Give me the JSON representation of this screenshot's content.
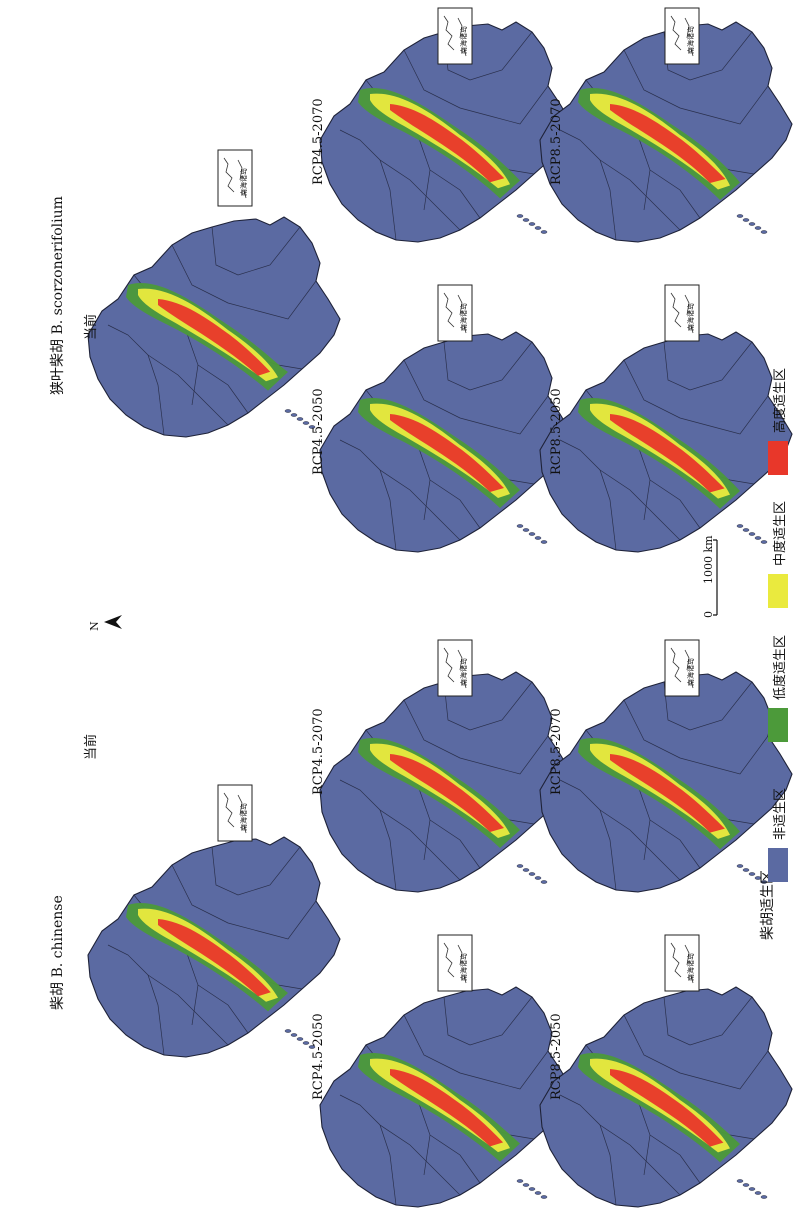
{
  "figure": {
    "species_left": "柴胡 B. chinense",
    "species_right": "狭叶柴胡 B. scorzonerifolium",
    "north_label": "N",
    "scale_zero": "0",
    "scale_label": "1000 km",
    "inset_label": "南海诸岛"
  },
  "panels": [
    {
      "label": "当前",
      "species": "B. chinense",
      "scenario": "current"
    },
    {
      "label": "RCP4.5-2050",
      "species": "B. chinense",
      "scenario": "RCP4.5-2050"
    },
    {
      "label": "RCP4.5-2070",
      "species": "B. chinense",
      "scenario": "RCP4.5-2070"
    },
    {
      "label": "RCP8.5-2050",
      "species": "B. chinense",
      "scenario": "RCP8.5-2050"
    },
    {
      "label": "RCP8.5-2070",
      "species": "B. chinense",
      "scenario": "RCP8.5-2070"
    },
    {
      "label": "当前",
      "species": "B. scorzonerifolium",
      "scenario": "current"
    },
    {
      "label": "RCP4.5-2050",
      "species": "B. scorzonerifolium",
      "scenario": "RCP4.5-2050"
    },
    {
      "label": "RCP4.5-2070",
      "species": "B. scorzonerifolium",
      "scenario": "RCP4.5-2070"
    },
    {
      "label": "RCP8.5-2050",
      "species": "B. scorzonerifolium",
      "scenario": "RCP8.5-2050"
    },
    {
      "label": "RCP8.5-2070",
      "species": "B. scorzonerifolium",
      "scenario": "RCP8.5-2070"
    }
  ],
  "legend": {
    "title": "柴胡适生区",
    "items": [
      {
        "label": "非适生区",
        "color": "#5b6aa2"
      },
      {
        "label": "低度适生区",
        "color": "#4c9a3a"
      },
      {
        "label": "中度适生区",
        "color": "#eaea3e"
      },
      {
        "label": "高度适生区",
        "color": "#e8372a"
      }
    ]
  },
  "colors": {
    "unsuitable": "#5b6aa2",
    "low": "#4c9a3a",
    "medium": "#eaea3e",
    "high": "#e8372a",
    "border": "#1e2238"
  }
}
